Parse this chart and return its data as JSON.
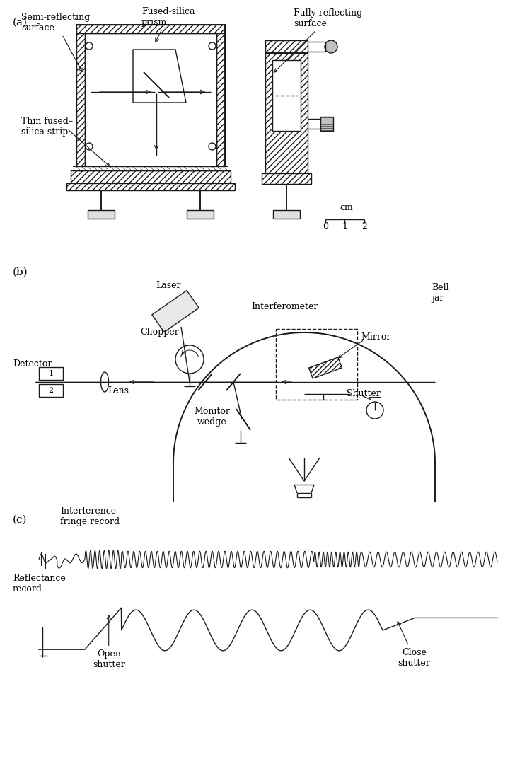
{
  "bg_color": "#ffffff",
  "line_color": "#1a1a1a",
  "label_a": "(a)",
  "label_b": "(b)",
  "label_c": "(c)",
  "text_semi_reflecting": "Semi-reflecting\nsurface",
  "text_fused_silica_prism": "Fused-silica\nprism",
  "text_fully_reflecting": "Fully reflecting\nsurface",
  "text_thin_fused": "Thin fused–\nsilica strip",
  "text_cm": "cm",
  "text_laser": "Laser",
  "text_chopper": "Chopper",
  "text_interferometer": "Interferometer",
  "text_bell_jar": "Bell\njar",
  "text_mirror": "Mirror",
  "text_detector": "Detector",
  "text_lens": "Lens",
  "text_monitor_wedge": "Monitor\nwedge",
  "text_shutter": "Shutter",
  "text_interference": "Interference\nfringe record",
  "text_reflectance": "Reflectance\nrecord",
  "text_open_shutter": "Open\nshutter",
  "text_close_shutter": "Close\nshutter",
  "text_1": "1",
  "text_2": "2",
  "scale_0": "0",
  "scale_1": "1",
  "scale_2": "2"
}
